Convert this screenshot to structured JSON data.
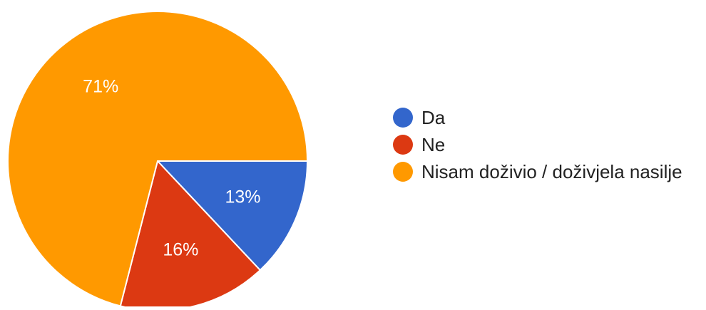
{
  "chart_data": {
    "type": "pie",
    "title": "",
    "slices": [
      {
        "label": "Da",
        "value": 13,
        "value_label": "13%",
        "color": "#3366cc"
      },
      {
        "label": "Ne",
        "value": 16,
        "value_label": "16%",
        "color": "#dc3912"
      },
      {
        "label": "Nisam doživio / doživjela nasilje",
        "value": 71,
        "value_label": "71%",
        "color": "#ff9900"
      }
    ],
    "start_angle_deg": 90,
    "direction": "clockwise",
    "legend_position": "right"
  }
}
